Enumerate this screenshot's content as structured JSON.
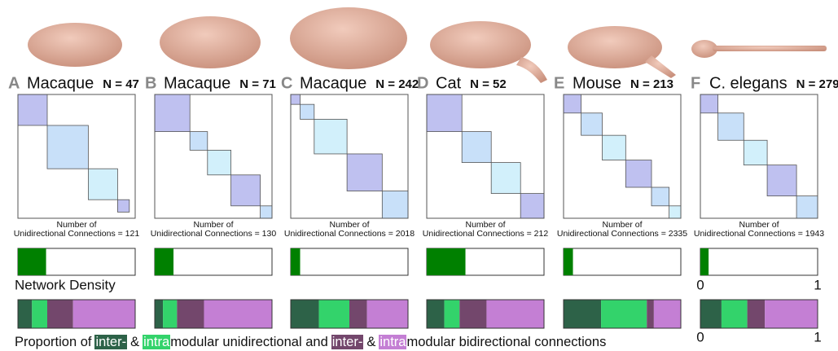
{
  "panels": [
    {
      "letter": "A",
      "species": "Macaque",
      "n_label": "N = 47",
      "connections_title": "Number of",
      "connections_label": "Unidirectional Connections = 121"
    },
    {
      "letter": "B",
      "species": "Macaque",
      "n_label": "N = 71",
      "connections_title": "Number of",
      "connections_label": "Unidirectional Connections = 130"
    },
    {
      "letter": "C",
      "species": "Macaque",
      "n_label": "N = 242",
      "connections_title": "Number of",
      "connections_label": "Unidirectional Connections = 2018"
    },
    {
      "letter": "D",
      "species": "Cat",
      "n_label": "N = 52",
      "connections_title": "Number of",
      "connections_label": "Unidirectional Connections = 212"
    },
    {
      "letter": "E",
      "species": "Mouse",
      "n_label": "N = 213",
      "connections_title": "Number of",
      "connections_label": "Unidirectional Connections = 2335"
    },
    {
      "letter": "F",
      "species": "C. elegans",
      "n_label": "N = 279",
      "connections_title": "Number of",
      "connections_label": "Unidirectional Connections = 1943"
    }
  ],
  "chart_data": [
    {
      "type": "bar",
      "title": "Network Density",
      "color": "#008000",
      "values": [
        0.24,
        0.16,
        0.08,
        0.33,
        0.08,
        0.07
      ],
      "xlim": [
        0,
        1
      ],
      "xticks": [
        0,
        1
      ]
    },
    {
      "type": "stacked-bar",
      "caption_texts": [
        "Proportion of",
        "&",
        "modular unidirectional and",
        "&",
        "modular bidirectional connections"
      ],
      "series": [
        {
          "name": "inter-",
          "color": "#2d6248",
          "values": [
            0.12,
            0.07,
            0.24,
            0.15,
            0.32,
            0.18
          ]
        },
        {
          "name": "intra",
          "color": "#33d36b",
          "values": [
            0.13,
            0.12,
            0.26,
            0.13,
            0.39,
            0.22
          ]
        },
        {
          "name": "inter-",
          "color": "#73476c",
          "values": [
            0.22,
            0.23,
            0.15,
            0.23,
            0.06,
            0.15
          ]
        },
        {
          "name": "intra",
          "color": "#c47fd4",
          "values": [
            0.53,
            0.58,
            0.35,
            0.49,
            0.23,
            0.45
          ]
        }
      ],
      "xlim": [
        0,
        1
      ],
      "xticks": [
        0,
        1
      ]
    }
  ]
}
